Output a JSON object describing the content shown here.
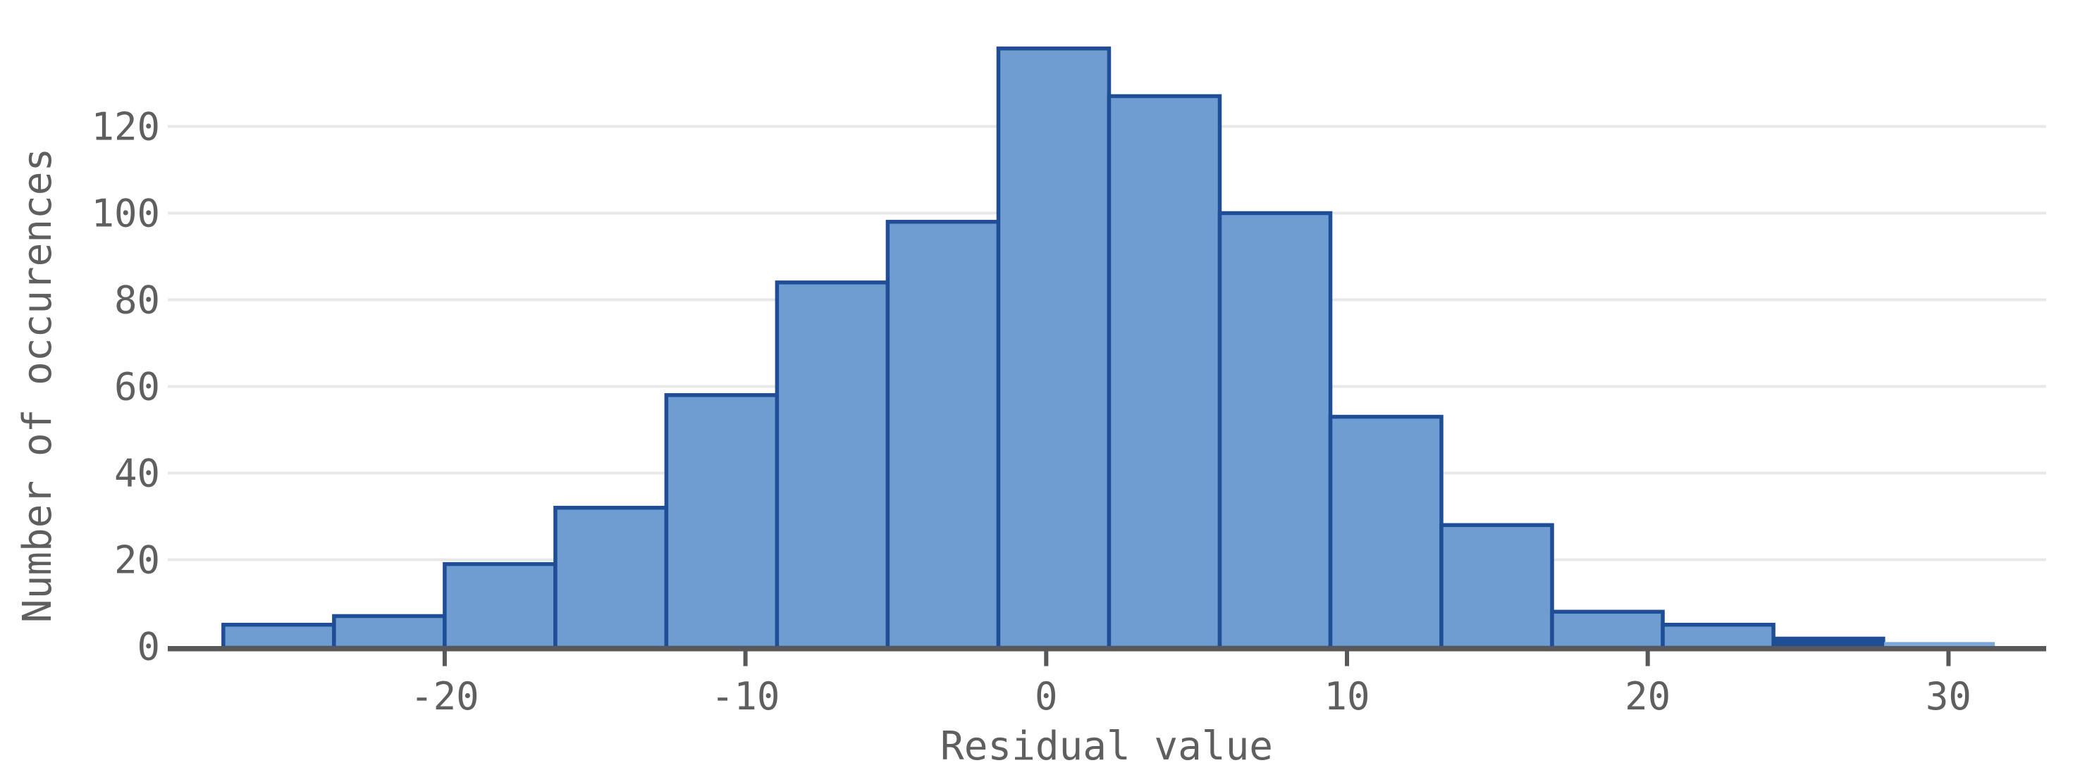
{
  "chart_data": {
    "type": "bar",
    "subtype": "histogram",
    "title": "",
    "xlabel": "Residual value",
    "ylabel": "Number of occurences",
    "x_tick_values": [
      -20,
      -10,
      0,
      10,
      20,
      30
    ],
    "x_tick_labels": [
      "-20",
      "-10",
      "0",
      "10",
      "20",
      "30"
    ],
    "y_tick_values": [
      0,
      20,
      40,
      60,
      80,
      100,
      120
    ],
    "y_tick_labels": [
      "0",
      "20",
      "40",
      "60",
      "80",
      "100",
      "120"
    ],
    "xlim": [
      -29.2,
      33.2
    ],
    "ylim": [
      0,
      144
    ],
    "grid": "horizontal-only",
    "legend": "none",
    "bins": [
      {
        "start": -27.36,
        "end": -23.68,
        "count": 5,
        "style": "normal"
      },
      {
        "start": -23.68,
        "end": -20.0,
        "count": 7,
        "style": "normal"
      },
      {
        "start": -20.0,
        "end": -16.32,
        "count": 19,
        "style": "normal"
      },
      {
        "start": -16.32,
        "end": -12.63,
        "count": 32,
        "style": "normal"
      },
      {
        "start": -12.63,
        "end": -8.95,
        "count": 58,
        "style": "normal"
      },
      {
        "start": -8.95,
        "end": -5.27,
        "count": 84,
        "style": "normal"
      },
      {
        "start": -5.27,
        "end": -1.59,
        "count": 98,
        "style": "normal"
      },
      {
        "start": -1.59,
        "end": 2.09,
        "count": 138,
        "style": "normal"
      },
      {
        "start": 2.09,
        "end": 5.77,
        "count": 127,
        "style": "normal"
      },
      {
        "start": 5.77,
        "end": 9.45,
        "count": 100,
        "style": "normal"
      },
      {
        "start": 9.45,
        "end": 13.14,
        "count": 53,
        "style": "normal"
      },
      {
        "start": 13.14,
        "end": 16.82,
        "count": 28,
        "style": "normal"
      },
      {
        "start": 16.82,
        "end": 20.5,
        "count": 8,
        "style": "normal"
      },
      {
        "start": 20.5,
        "end": 24.18,
        "count": 5,
        "style": "normal"
      },
      {
        "start": 24.18,
        "end": 27.86,
        "count": 2,
        "style": "solid-dark"
      },
      {
        "start": 27.86,
        "end": 31.54,
        "count": 1,
        "style": "light-noborder"
      }
    ],
    "colors": {
      "bar_fill": "#6f9dd1",
      "bar_stroke": "#1f4e96",
      "bar_fill_light": "#7ba6d9",
      "gridline": "#e8e8e8",
      "axis_line": "#58585a",
      "tick_mark": "#58585a",
      "label_text": "#5f5f5f",
      "background": "#ffffff"
    }
  }
}
